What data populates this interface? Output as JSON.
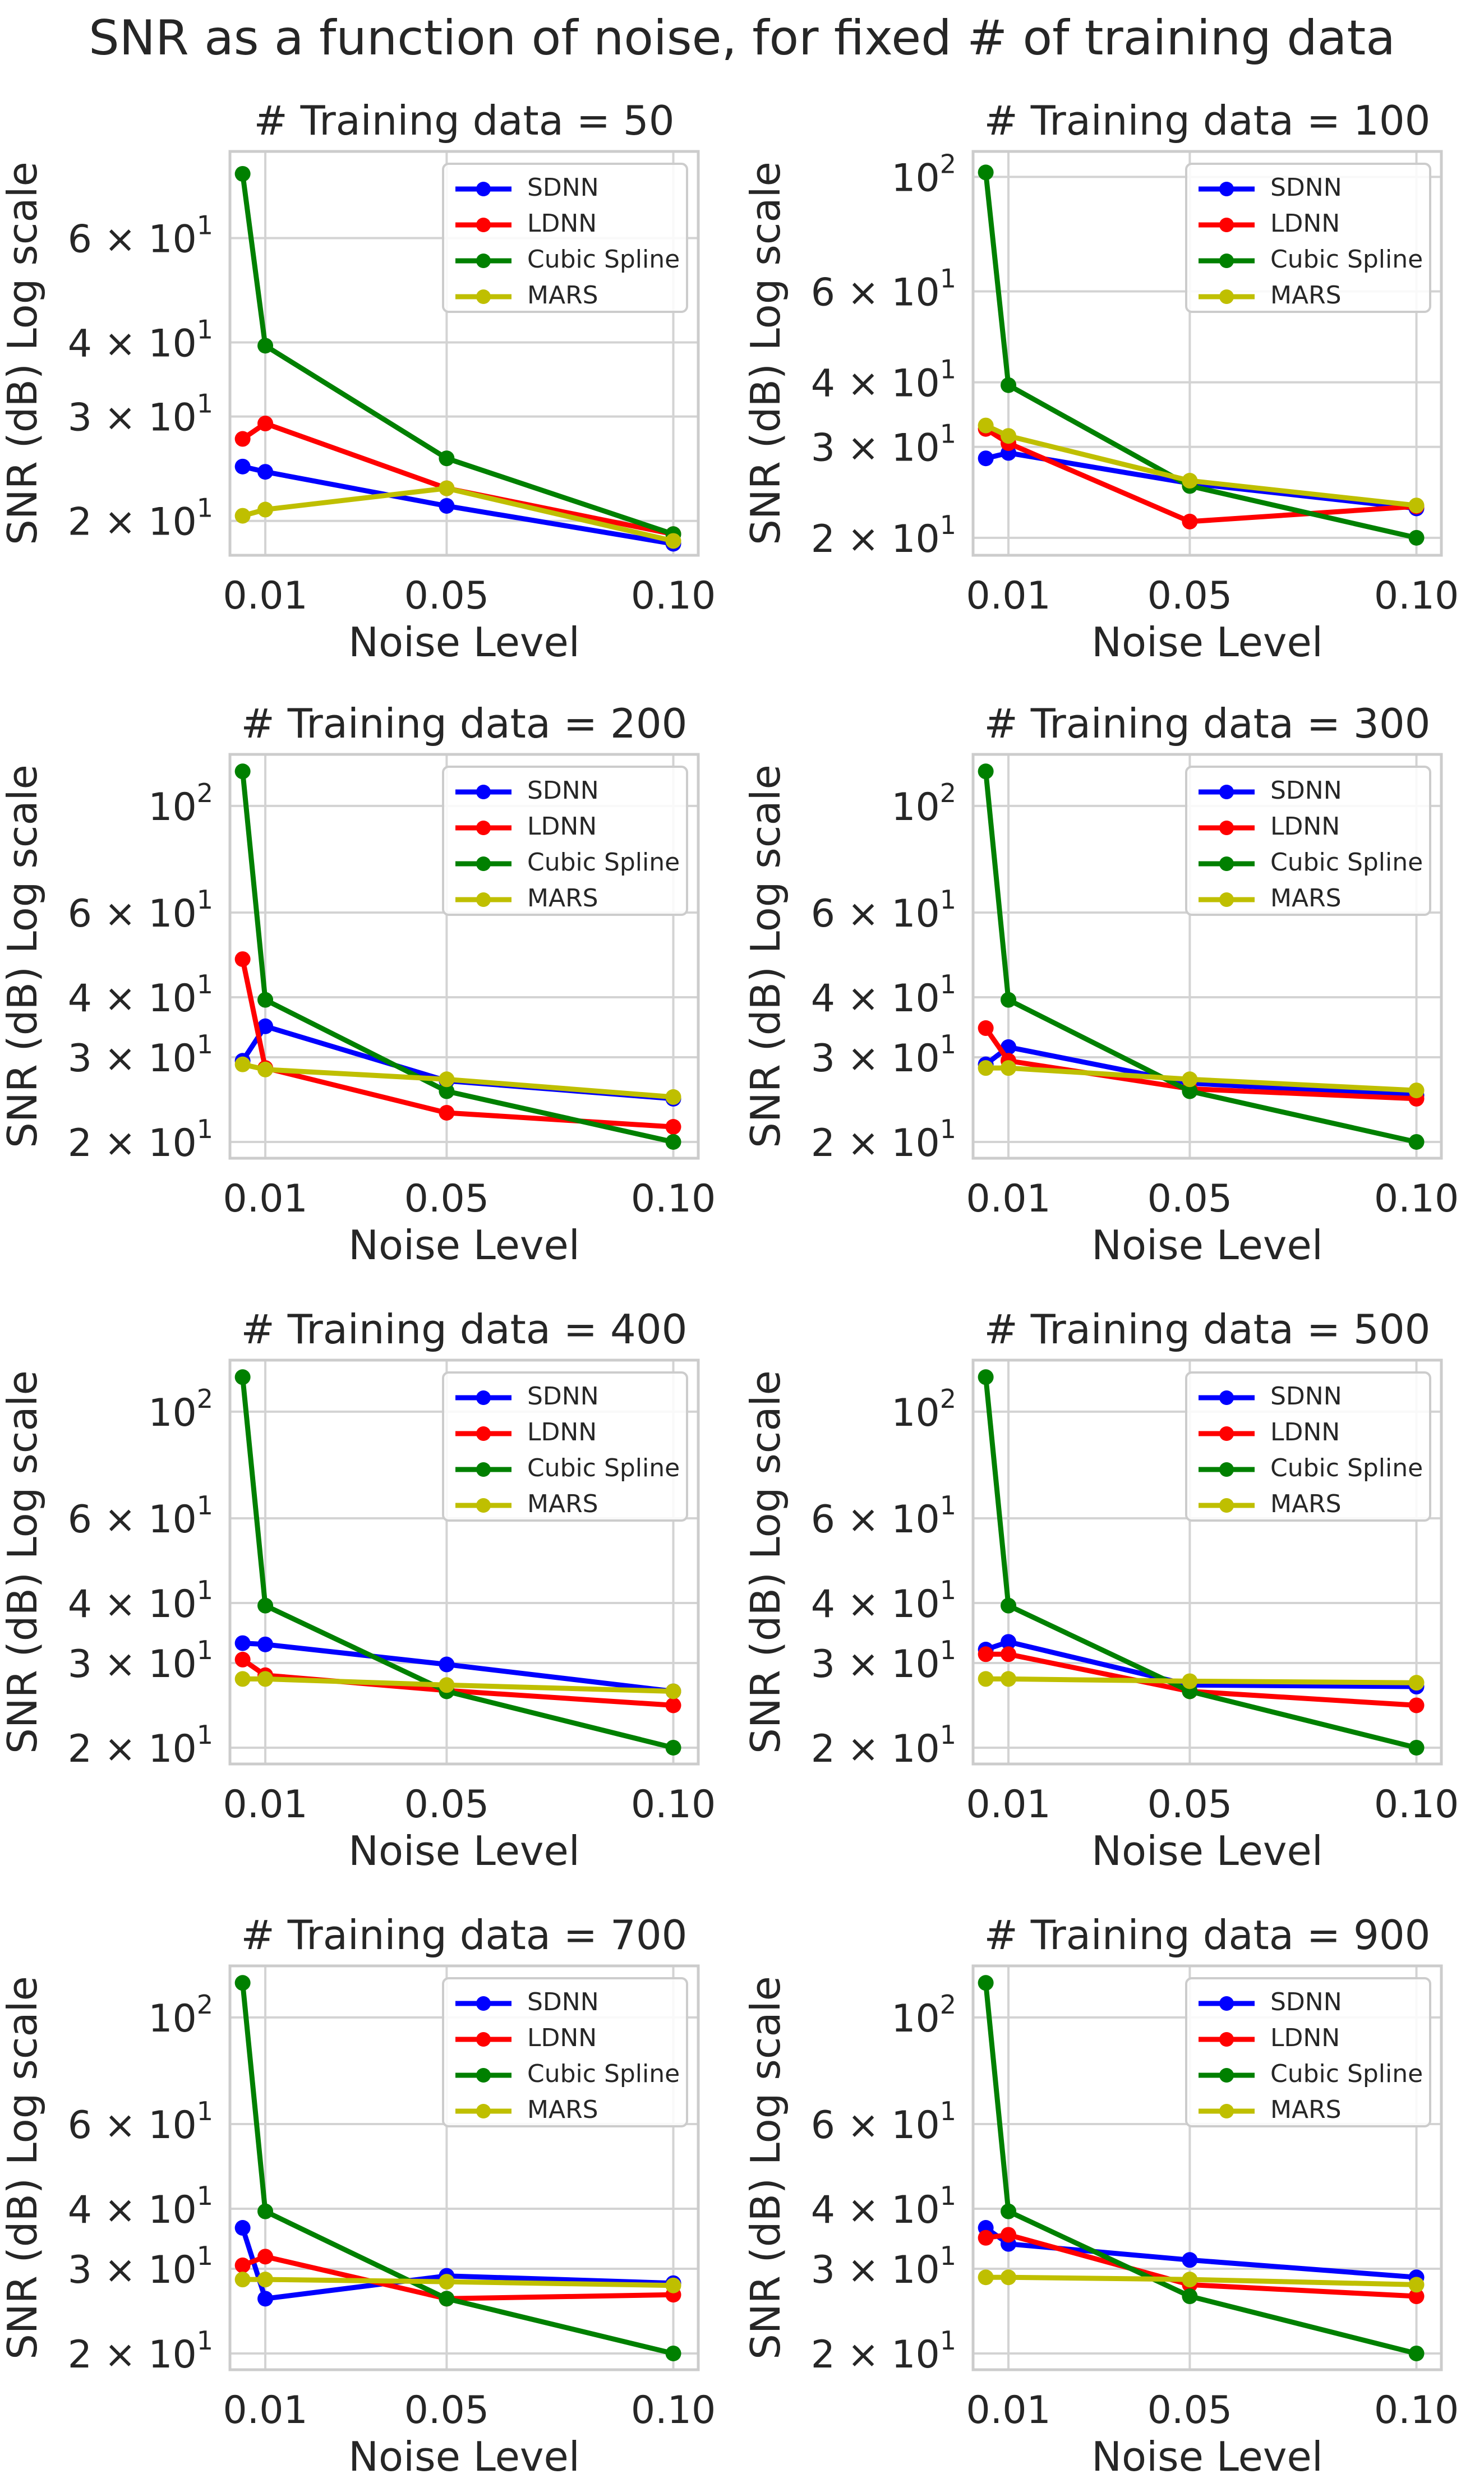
{
  "figure_title": "SNR as a function of noise, for fixed # of training data",
  "colors": {
    "SDNN": "#0000ff",
    "LDNN": "#ff0000",
    "Cubic Spline": "#008000",
    "MARS": "#bfbf00",
    "grid": "#d3d3d3",
    "frame": "#cccccc",
    "text": "#262626"
  },
  "chart_data": [
    {
      "type": "line",
      "title": "# Training data = 50",
      "xlabel": "Noise Level",
      "ylabel": "SNR (dB) Log scale",
      "x": [
        0.005,
        0.01,
        0.05,
        0.1
      ],
      "x_ticks": [
        0.01,
        0.05,
        0.1
      ],
      "x_tick_labels": [
        "0.01",
        "0.05",
        "0.10"
      ],
      "y_ticks": [
        20,
        30,
        40,
        60
      ],
      "y_tick_labels": [
        "2 × 10¹",
        "3 × 10¹",
        "4 × 10¹",
        "6 × 10¹"
      ],
      "y_scale": "log",
      "ylim": [
        17.5,
        84
      ],
      "grid": true,
      "legend_position": "top-right",
      "series": [
        {
          "name": "SDNN",
          "values": [
            24.7,
            24.2,
            21.2,
            18.3
          ]
        },
        {
          "name": "LDNN",
          "values": [
            27.5,
            29.2,
            22.7,
            19.0
          ]
        },
        {
          "name": "Cubic Spline",
          "values": [
            77.0,
            39.5,
            25.5,
            19.0
          ]
        },
        {
          "name": "MARS",
          "values": [
            20.4,
            20.9,
            22.7,
            18.5
          ]
        }
      ]
    },
    {
      "type": "line",
      "title": "# Training data = 100",
      "xlabel": "Noise Level",
      "ylabel": "SNR (dB) Log scale",
      "x": [
        0.005,
        0.01,
        0.05,
        0.1
      ],
      "x_ticks": [
        0.01,
        0.05,
        0.1
      ],
      "x_tick_labels": [
        "0.01",
        "0.05",
        "0.10"
      ],
      "y_ticks": [
        20,
        30,
        40,
        60,
        100
      ],
      "y_tick_labels": [
        "2 × 10¹",
        "3 × 10¹",
        "4 × 10¹",
        "6 × 10¹",
        "10²"
      ],
      "y_scale": "log",
      "ylim": [
        18.5,
        112
      ],
      "grid": true,
      "legend_position": "top-right",
      "series": [
        {
          "name": "SDNN",
          "values": [
            28.5,
            29.2,
            25.5,
            22.8
          ]
        },
        {
          "name": "LDNN",
          "values": [
            32.5,
            30.5,
            21.5,
            23.0
          ]
        },
        {
          "name": "Cubic Spline",
          "values": [
            102.0,
            39.5,
            25.2,
            20.0
          ]
        },
        {
          "name": "MARS",
          "values": [
            33.0,
            31.5,
            25.8,
            23.1
          ]
        }
      ]
    },
    {
      "type": "line",
      "title": "# Training data = 200",
      "xlabel": "Noise Level",
      "ylabel": "SNR (dB) Log scale",
      "x": [
        0.005,
        0.01,
        0.05,
        0.1
      ],
      "x_ticks": [
        0.01,
        0.05,
        0.1
      ],
      "x_tick_labels": [
        "0.01",
        "0.05",
        "0.10"
      ],
      "y_ticks": [
        20,
        30,
        40,
        60,
        100
      ],
      "y_tick_labels": [
        "2 × 10¹",
        "3 × 10¹",
        "4 × 10¹",
        "6 × 10¹",
        "10²"
      ],
      "y_scale": "log",
      "ylim": [
        18.5,
        128
      ],
      "grid": true,
      "legend_position": "top-right",
      "series": [
        {
          "name": "SDNN",
          "values": [
            29.5,
            34.8,
            26.8,
            24.6
          ]
        },
        {
          "name": "LDNN",
          "values": [
            48.0,
            28.5,
            23.0,
            21.5
          ]
        },
        {
          "name": "Cubic Spline",
          "values": [
            118.0,
            39.5,
            25.5,
            20.0
          ]
        },
        {
          "name": "MARS",
          "values": [
            29.0,
            28.3,
            27.0,
            24.8
          ]
        }
      ]
    },
    {
      "type": "line",
      "title": "# Training data = 300",
      "xlabel": "Noise Level",
      "ylabel": "SNR (dB) Log scale",
      "x": [
        0.005,
        0.01,
        0.05,
        0.1
      ],
      "x_ticks": [
        0.01,
        0.05,
        0.1
      ],
      "x_tick_labels": [
        "0.01",
        "0.05",
        "0.10"
      ],
      "y_ticks": [
        20,
        30,
        40,
        60,
        100
      ],
      "y_tick_labels": [
        "2 × 10¹",
        "3 × 10¹",
        "4 × 10¹",
        "6 × 10¹",
        "10²"
      ],
      "y_scale": "log",
      "ylim": [
        18.5,
        128
      ],
      "grid": true,
      "legend_position": "top-right",
      "series": [
        {
          "name": "SDNN",
          "values": [
            29.0,
            31.5,
            26.5,
            25.0
          ]
        },
        {
          "name": "LDNN",
          "values": [
            34.5,
            29.5,
            25.8,
            24.6
          ]
        },
        {
          "name": "Cubic Spline",
          "values": [
            118.0,
            39.5,
            25.5,
            20.0
          ]
        },
        {
          "name": "MARS",
          "values": [
            28.5,
            28.5,
            27.0,
            25.6
          ]
        }
      ]
    },
    {
      "type": "line",
      "title": "# Training data = 400",
      "xlabel": "Noise Level",
      "ylabel": "SNR (dB) Log scale",
      "x": [
        0.005,
        0.01,
        0.05,
        0.1
      ],
      "x_ticks": [
        0.01,
        0.05,
        0.1
      ],
      "x_tick_labels": [
        "0.01",
        "0.05",
        "0.10"
      ],
      "y_ticks": [
        20,
        30,
        40,
        60,
        100
      ],
      "y_tick_labels": [
        "2 × 10¹",
        "3 × 10¹",
        "4 × 10¹",
        "6 × 10¹",
        "10²"
      ],
      "y_scale": "log",
      "ylim": [
        18.5,
        128
      ],
      "grid": true,
      "legend_position": "top-right",
      "series": [
        {
          "name": "SDNN",
          "values": [
            33.0,
            32.8,
            29.8,
            26.2
          ]
        },
        {
          "name": "LDNN",
          "values": [
            30.5,
            28.3,
            26.3,
            24.5
          ]
        },
        {
          "name": "Cubic Spline",
          "values": [
            118.0,
            39.5,
            26.2,
            20.0
          ]
        },
        {
          "name": "MARS",
          "values": [
            27.8,
            27.8,
            27.0,
            26.2
          ]
        }
      ]
    },
    {
      "type": "line",
      "title": "# Training data = 500",
      "xlabel": "Noise Level",
      "ylabel": "SNR (dB) Log scale",
      "x": [
        0.005,
        0.01,
        0.05,
        0.1
      ],
      "x_ticks": [
        0.01,
        0.05,
        0.1
      ],
      "x_tick_labels": [
        "0.01",
        "0.05",
        "0.10"
      ],
      "y_ticks": [
        20,
        30,
        40,
        60,
        100
      ],
      "y_tick_labels": [
        "2 × 10¹",
        "3 × 10¹",
        "4 × 10¹",
        "6 × 10¹",
        "10²"
      ],
      "y_scale": "log",
      "ylim": [
        18.5,
        128
      ],
      "grid": true,
      "legend_position": "top-right",
      "series": [
        {
          "name": "SDNN",
          "values": [
            32.0,
            33.2,
            27.0,
            26.8
          ]
        },
        {
          "name": "LDNN",
          "values": [
            31.3,
            31.3,
            26.2,
            24.5
          ]
        },
        {
          "name": "Cubic Spline",
          "values": [
            118.0,
            39.5,
            26.2,
            20.0
          ]
        },
        {
          "name": "MARS",
          "values": [
            27.8,
            27.8,
            27.5,
            27.3
          ]
        }
      ]
    },
    {
      "type": "line",
      "title": "# Training data = 700",
      "xlabel": "Noise Level",
      "ylabel": "SNR (dB) Log scale",
      "x": [
        0.005,
        0.01,
        0.05,
        0.1
      ],
      "x_ticks": [
        0.01,
        0.05,
        0.1
      ],
      "x_tick_labels": [
        "0.01",
        "0.05",
        "0.10"
      ],
      "y_ticks": [
        20,
        30,
        40,
        60,
        100
      ],
      "y_tick_labels": [
        "2 × 10¹",
        "3 × 10¹",
        "4 × 10¹",
        "6 × 10¹",
        "10²"
      ],
      "y_scale": "log",
      "ylim": [
        18.5,
        128
      ],
      "grid": true,
      "legend_position": "top-right",
      "series": [
        {
          "name": "SDNN",
          "values": [
            36.5,
            26.0,
            29.0,
            28.0
          ]
        },
        {
          "name": "LDNN",
          "values": [
            30.5,
            31.8,
            26.0,
            26.5
          ]
        },
        {
          "name": "Cubic Spline",
          "values": [
            118.0,
            39.5,
            26.0,
            20.0
          ]
        },
        {
          "name": "MARS",
          "values": [
            28.5,
            28.5,
            28.2,
            27.7
          ]
        }
      ]
    },
    {
      "type": "line",
      "title": "# Training data = 900",
      "xlabel": "Noise Level",
      "ylabel": "SNR (dB) Log scale",
      "x": [
        0.005,
        0.01,
        0.05,
        0.1
      ],
      "x_ticks": [
        0.01,
        0.05,
        0.1
      ],
      "x_tick_labels": [
        "0.01",
        "0.05",
        "0.10"
      ],
      "y_ticks": [
        20,
        30,
        40,
        60,
        100
      ],
      "y_tick_labels": [
        "2 × 10¹",
        "3 × 10¹",
        "4 × 10¹",
        "6 × 10¹",
        "10²"
      ],
      "y_scale": "log",
      "ylim": [
        18.5,
        128
      ],
      "grid": true,
      "legend_position": "top-right",
      "series": [
        {
          "name": "SDNN",
          "values": [
            36.5,
            33.8,
            31.3,
            28.8
          ]
        },
        {
          "name": "LDNN",
          "values": [
            34.8,
            35.3,
            27.8,
            26.3
          ]
        },
        {
          "name": "Cubic Spline",
          "values": [
            118.0,
            39.5,
            26.3,
            20.0
          ]
        },
        {
          "name": "MARS",
          "values": [
            28.8,
            28.8,
            28.5,
            27.8
          ]
        }
      ]
    }
  ]
}
